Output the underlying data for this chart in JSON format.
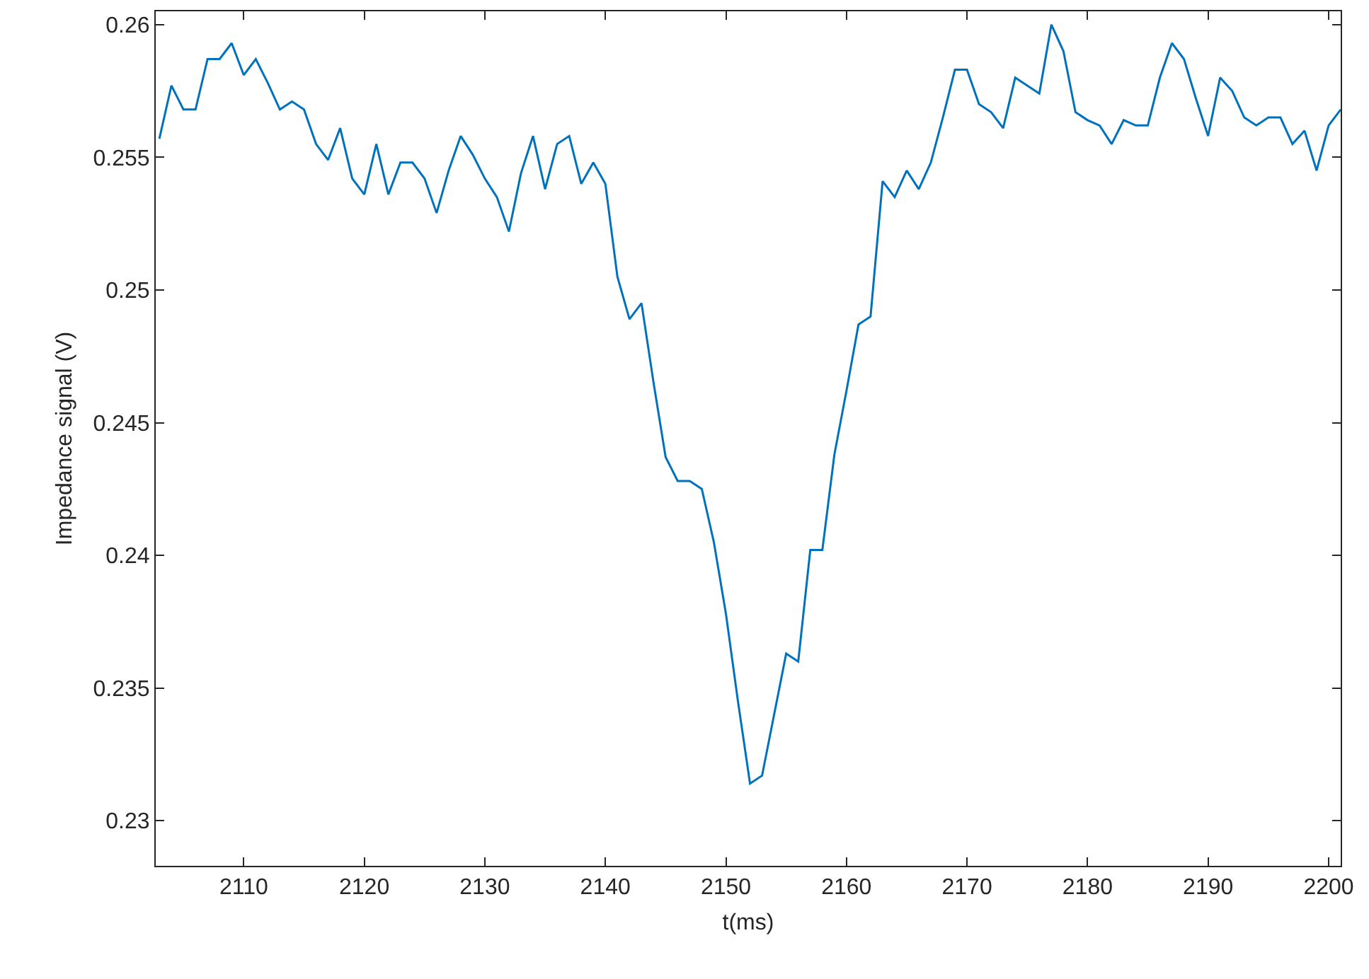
{
  "chart_data": {
    "type": "line",
    "xlabel": "t(ms)",
    "ylabel": "Impedance signal (V)",
    "x": [
      2103,
      2104,
      2105,
      2106,
      2107,
      2108,
      2109,
      2110,
      2111,
      2112,
      2113,
      2114,
      2115,
      2116,
      2117,
      2118,
      2119,
      2120,
      2121,
      2122,
      2123,
      2124,
      2125,
      2126,
      2127,
      2128,
      2129,
      2130,
      2131,
      2132,
      2133,
      2134,
      2135,
      2136,
      2137,
      2138,
      2139,
      2140,
      2141,
      2142,
      2143,
      2144,
      2145,
      2146,
      2147,
      2148,
      2149,
      2150,
      2151,
      2152,
      2153,
      2154,
      2155,
      2156,
      2157,
      2158,
      2159,
      2160,
      2161,
      2162,
      2163,
      2164,
      2165,
      2166,
      2167,
      2168,
      2169,
      2170,
      2171,
      2172,
      2173,
      2174,
      2175,
      2176,
      2177,
      2178,
      2179,
      2180,
      2181,
      2182,
      2183,
      2184,
      2185,
      2186,
      2187,
      2188,
      2189,
      2190,
      2191,
      2192,
      2193,
      2194,
      2195,
      2196,
      2197,
      2198,
      2199,
      2200,
      2201
    ],
    "series": [
      {
        "color": "#0072bd",
        "values": [
          0.2557,
          0.2577,
          0.2568,
          0.2568,
          0.2587,
          0.2587,
          0.2593,
          0.2581,
          0.2587,
          0.2578,
          0.2568,
          0.2571,
          0.2568,
          0.2555,
          0.2549,
          0.2561,
          0.2542,
          0.2536,
          0.2555,
          0.2536,
          0.2548,
          0.2548,
          0.2542,
          0.2529,
          0.2545,
          0.2558,
          0.2551,
          0.2542,
          0.2535,
          0.2522,
          0.2544,
          0.2558,
          0.2538,
          0.2555,
          0.2558,
          0.254,
          0.2548,
          0.254,
          0.2505,
          0.2489,
          0.2495,
          0.2465,
          0.2437,
          0.2428,
          0.2428,
          0.2425,
          0.2405,
          0.2378,
          0.2345,
          0.2314,
          0.2317,
          0.234,
          0.2363,
          0.236,
          0.2402,
          0.2402,
          0.2438,
          0.2462,
          0.2487,
          0.249,
          0.2541,
          0.2535,
          0.2545,
          0.2538,
          0.2548,
          0.2565,
          0.2583,
          0.2583,
          0.257,
          0.2567,
          0.2561,
          0.258,
          0.2577,
          0.2574,
          0.26,
          0.259,
          0.2567,
          0.2564,
          0.2562,
          0.2555,
          0.2564,
          0.2562,
          0.2562,
          0.258,
          0.2593,
          0.2587,
          0.2572,
          0.2558,
          0.258,
          0.2575,
          0.2565,
          0.2562,
          0.2565,
          0.2565,
          0.2555,
          0.256,
          0.2545,
          0.2562,
          0.2568
        ]
      }
    ],
    "xlim": [
      2102.7,
      2201
    ],
    "xticks": [
      2110,
      2120,
      2130,
      2140,
      2150,
      2160,
      2170,
      2180,
      2190,
      2200
    ],
    "ylim": [
      0.2283,
      0.2605
    ],
    "yticks": [
      0.23,
      0.235,
      0.24,
      0.245,
      0.25,
      0.255,
      0.26
    ],
    "grid": false,
    "marker": "none",
    "line_style": "solid"
  }
}
